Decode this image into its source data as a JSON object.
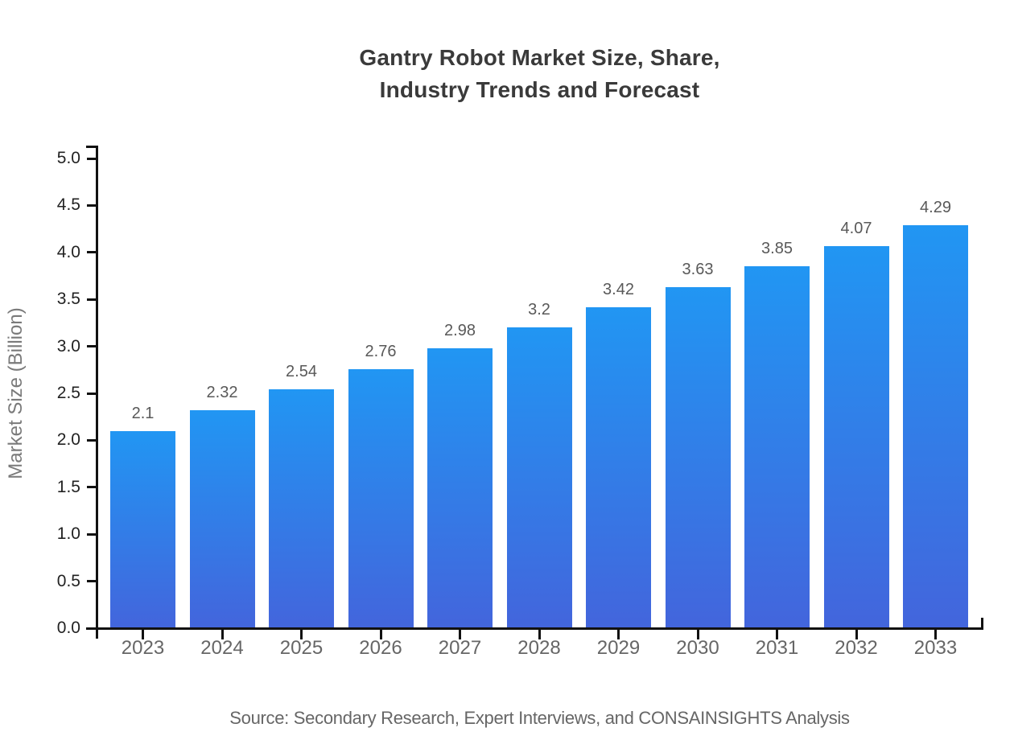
{
  "title": {
    "line1": "Gantry Robot Market Size, Share,",
    "line2": "Industry Trends and Forecast"
  },
  "source": "Source: Secondary Research, Expert Interviews, and CONSAINSIGHTS Analysis",
  "colors": {
    "background": "#ffffff",
    "bar_gradient_top": "#2196f3",
    "bar_gradient_bottom": "#4365dc",
    "axis": "#111111",
    "title_text": "#3a3a3a",
    "y_tick_label": "#222222",
    "x_tick_label": "#666666",
    "value_label": "#595959",
    "y_axis_title": "#7a7a7a",
    "source_text": "#666666"
  },
  "chart_data": {
    "type": "bar",
    "title": "Gantry Robot Market Size, Share, Industry Trends and Forecast",
    "categories": [
      "2023",
      "2024",
      "2025",
      "2026",
      "2027",
      "2028",
      "2029",
      "2030",
      "2031",
      "2032",
      "2033"
    ],
    "values": [
      2.1,
      2.32,
      2.54,
      2.76,
      2.98,
      3.2,
      3.42,
      3.63,
      3.85,
      4.07,
      4.29
    ],
    "value_labels": [
      "2.1",
      "2.32",
      "2.54",
      "2.76",
      "2.98",
      "3.2",
      "3.42",
      "3.63",
      "3.85",
      "4.07",
      "4.29"
    ],
    "xlabel": "",
    "ylabel": "Market Size (Billion)",
    "ylim": [
      0,
      5
    ],
    "ytick_step": 0.5,
    "ytick_labels": [
      "0.0",
      "0.5",
      "1.0",
      "1.5",
      "2.0",
      "2.5",
      "3.0",
      "3.5",
      "4.0",
      "4.5",
      "5.0"
    ],
    "grid": false,
    "legend_position": "none"
  }
}
